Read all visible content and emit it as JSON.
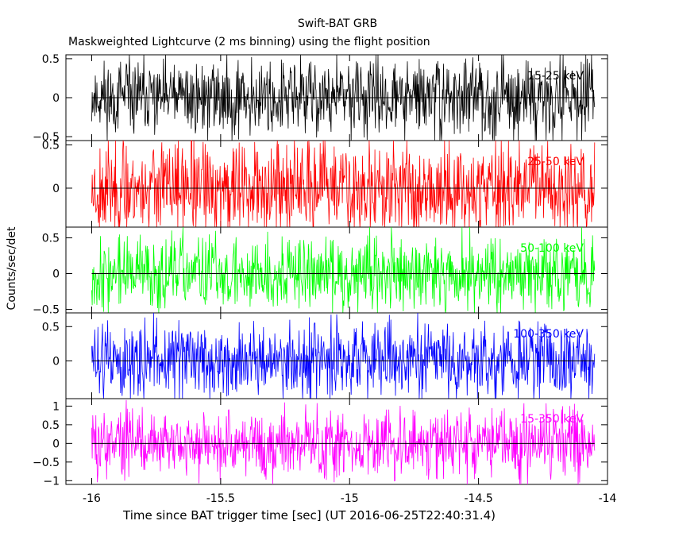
{
  "chart_data": {
    "type": "line",
    "title": "Swift-BAT GRB",
    "subtitle": "Maskweighted Lightcurve (2 ms binning) using the flight position",
    "xlabel": "Time since BAT trigger time [sec] (UT 2016-06-25T22:40:31.4)",
    "ylabel": "Counts/sec/det",
    "xlim": [
      -16.1,
      -14.0
    ],
    "x_ticks": [
      "-16",
      "-15.5",
      "-15",
      "-14.5",
      "-14"
    ],
    "x_tick_values": [
      -16,
      -15.5,
      -15,
      -14.5,
      -14
    ],
    "data_range_x": [
      -16.0,
      -14.05
    ],
    "binning_sec": 0.002,
    "grid": false,
    "panels": [
      {
        "name": "15-25 keV",
        "color": "#000000",
        "ylim": [
          -0.55,
          0.55
        ],
        "y_ticks": [
          "0.5",
          "0",
          "−0.5"
        ],
        "y_tick_values": [
          0.5,
          0,
          -0.5
        ],
        "amplitude": 0.4,
        "seed": 11
      },
      {
        "name": "25-50 keV",
        "color": "#ff0000",
        "ylim": [
          -0.45,
          0.55
        ],
        "y_ticks": [
          "0.5",
          "0"
        ],
        "y_tick_values": [
          0.5,
          0
        ],
        "amplitude": 0.45,
        "seed": 23
      },
      {
        "name": "50-100 keV",
        "color": "#00ff00",
        "ylim": [
          -0.55,
          0.65
        ],
        "y_ticks": [
          "0.5",
          "0",
          "−0.5"
        ],
        "y_tick_values": [
          0.5,
          0,
          -0.5
        ],
        "amplitude": 0.42,
        "seed": 37
      },
      {
        "name": "100-350 keV",
        "color": "#0000ff",
        "ylim": [
          -0.55,
          0.7
        ],
        "y_ticks": [
          "0.5",
          "0"
        ],
        "y_tick_values": [
          0.5,
          0
        ],
        "amplitude": 0.45,
        "seed": 51
      },
      {
        "name": "15-350 keV",
        "color": "#ff00ff",
        "ylim": [
          -1.1,
          1.2
        ],
        "y_ticks": [
          "1",
          "0.5",
          "0",
          "−0.5",
          "−1"
        ],
        "y_tick_values": [
          1,
          0.5,
          0,
          -0.5,
          -1
        ],
        "amplitude": 0.75,
        "seed": 73
      }
    ]
  }
}
